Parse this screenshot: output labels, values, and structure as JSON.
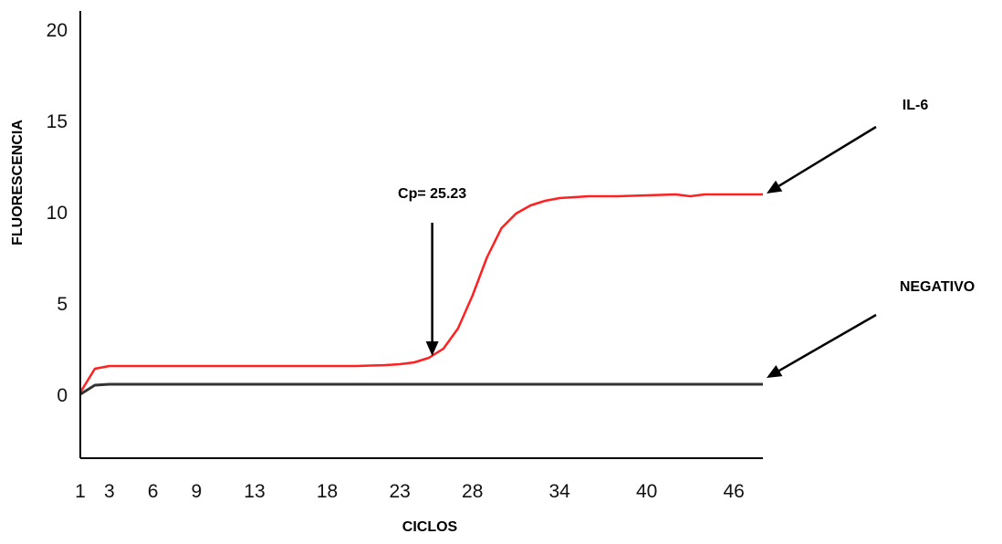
{
  "chart_data": {
    "type": "line",
    "title": "",
    "xlabel": "CICLOS",
    "ylabel": "FLUORESCENCIA",
    "xlim": [
      1,
      48
    ],
    "ylim": [
      -3.5,
      21
    ],
    "x_tick_labels": [
      "1",
      "3",
      "6",
      "9",
      "13",
      "18",
      "23",
      "28",
      "34",
      "40",
      "46"
    ],
    "y_tick_labels": [
      "20",
      "15",
      "10",
      "5",
      "0"
    ],
    "grid": false,
    "series": [
      {
        "name": "IL-6",
        "color": "#ff2020",
        "x": [
          1,
          2,
          3,
          5,
          10,
          15,
          20,
          22,
          23,
          24,
          25,
          26,
          27,
          28,
          29,
          30,
          31,
          32,
          33,
          34,
          35,
          36,
          38,
          40,
          42,
          43,
          44,
          46,
          48
        ],
        "y": [
          0.1,
          1.4,
          1.55,
          1.55,
          1.55,
          1.55,
          1.55,
          1.6,
          1.65,
          1.75,
          2.0,
          2.5,
          3.6,
          5.4,
          7.5,
          9.1,
          9.9,
          10.35,
          10.6,
          10.75,
          10.8,
          10.85,
          10.85,
          10.9,
          10.95,
          10.85,
          10.95,
          10.95,
          10.95
        ]
      },
      {
        "name": "NEGATIVO",
        "color": "#333333",
        "x": [
          1,
          2,
          3,
          10,
          20,
          30,
          40,
          48
        ],
        "y": [
          0.0,
          0.5,
          0.55,
          0.55,
          0.55,
          0.55,
          0.55,
          0.55
        ]
      }
    ],
    "annotations": [
      {
        "text": "Cp= 25.23",
        "target_x": 25.23,
        "target_y": 1.9
      },
      {
        "text": "IL-6",
        "target_x": 48,
        "target_y": 10.95
      },
      {
        "text": "NEGATIVO",
        "target_x": 48,
        "target_y": 0.55
      }
    ]
  }
}
